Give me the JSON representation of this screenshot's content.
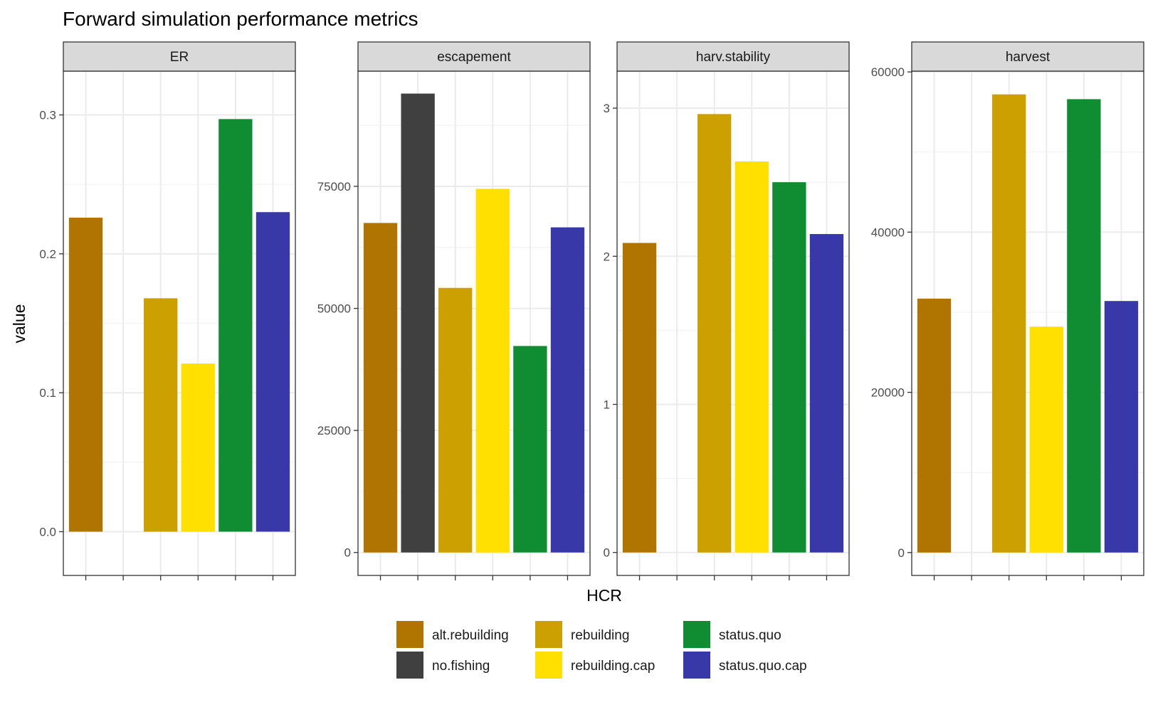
{
  "chart_data": {
    "type": "bar",
    "title": "Forward simulation performance metrics",
    "xlabel": "HCR",
    "ylabel": "value",
    "categories": [
      "alt.rebuilding",
      "no.fishing",
      "rebuilding",
      "rebuilding.cap",
      "status.quo",
      "status.quo.cap"
    ],
    "colors": [
      "#B07500",
      "#404040",
      "#CCA000",
      "#FFE000",
      "#108C33",
      "#3838A8"
    ],
    "grid": true,
    "legend_position": "bottom",
    "panels": [
      {
        "name": "ER",
        "ylim": [
          -0.0315,
          0.3315
        ],
        "yticks": [
          0,
          0.1,
          0.2,
          0.3
        ],
        "ytick_labels": [
          "0.0",
          "0.1",
          "0.2",
          "0.3"
        ],
        "values": [
          0.226,
          0,
          0.168,
          0.121,
          0.297,
          0.23
        ]
      },
      {
        "name": "escapement",
        "ylim": [
          -4700,
          98600
        ],
        "yticks": [
          0,
          25000,
          50000,
          75000
        ],
        "ytick_labels": [
          "0",
          "25000",
          "50000",
          "75000"
        ],
        "values": [
          67500,
          94000,
          54200,
          74500,
          42300,
          66600
        ]
      },
      {
        "name": "harv.stability",
        "ylim": [
          -0.155,
          3.25
        ],
        "yticks": [
          0,
          1,
          2,
          3
        ],
        "ytick_labels": [
          "0",
          "1",
          "2",
          "3"
        ],
        "values": [
          2.09,
          0,
          2.96,
          2.64,
          2.5,
          2.15
        ]
      },
      {
        "name": "harvest",
        "ylim": [
          -2860,
          60100
        ],
        "yticks": [
          0,
          20000,
          40000,
          60000
        ],
        "ytick_labels": [
          "0",
          "20000",
          "40000",
          "60000"
        ],
        "values": [
          31700,
          0,
          57200,
          28200,
          56600,
          31400
        ]
      }
    ],
    "legend": {
      "columns": [
        [
          "alt.rebuilding",
          "no.fishing"
        ],
        [
          "rebuilding",
          "rebuilding.cap"
        ],
        [
          "status.quo",
          "status.quo.cap"
        ]
      ]
    }
  }
}
